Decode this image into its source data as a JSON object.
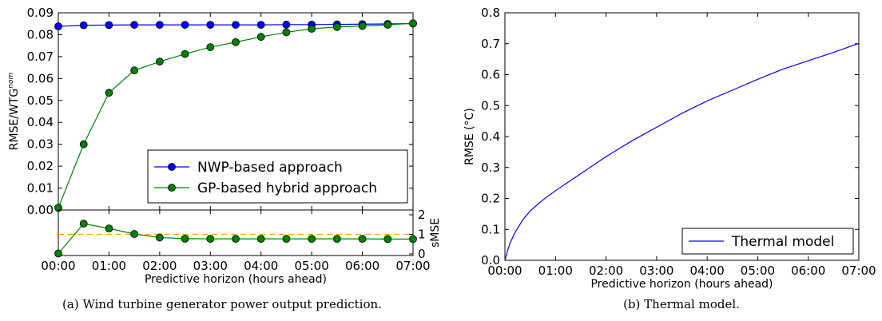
{
  "chart_data": [
    {
      "type": "line",
      "panel": "a-top",
      "x": [
        "00:00",
        "00:30",
        "01:00",
        "01:30",
        "02:00",
        "02:30",
        "03:00",
        "03:30",
        "04:00",
        "04:30",
        "05:00",
        "05:30",
        "06:00",
        "06:30",
        "07:00"
      ],
      "xlabel": "Predictive horizon (hours ahead)",
      "ylabel": "RMSE/WTG",
      "ylabel_sup": "nom",
      "ylim": [
        0,
        0.09
      ],
      "yticks": [
        "0.00",
        "0.01",
        "0.02",
        "0.03",
        "0.04",
        "0.05",
        "0.06",
        "0.07",
        "0.08",
        "0.09"
      ],
      "xticks": [
        "00:00",
        "01:00",
        "02:00",
        "03:00",
        "04:00",
        "05:00",
        "06:00",
        "07:00"
      ],
      "legend": "bottom-right",
      "series": [
        {
          "name": "NWP-based approach",
          "color": "#0000ff",
          "values": [
            0.0838,
            0.0843,
            0.0844,
            0.0845,
            0.0845,
            0.0845,
            0.0845,
            0.0845,
            0.0845,
            0.0846,
            0.0846,
            0.0847,
            0.0848,
            0.0849,
            0.0851
          ]
        },
        {
          "name": "GP-based hybrid approach",
          "color": "#008000",
          "values": [
            0.001,
            0.03,
            0.0535,
            0.0637,
            0.0677,
            0.0712,
            0.0743,
            0.0766,
            0.079,
            0.0811,
            0.0827,
            0.0835,
            0.084,
            0.0845,
            0.0852
          ]
        }
      ]
    },
    {
      "type": "line",
      "panel": "a-bottom",
      "ylabel": "sMSE",
      "ylim": [
        0,
        2
      ],
      "yticks": [
        "0",
        "1",
        "2"
      ],
      "reference_line": {
        "value": 1.0,
        "color": "#ffa500",
        "style": "dashed"
      },
      "series": [
        {
          "name": "",
          "color": "#008000",
          "values": [
            0.02,
            1.55,
            1.3,
            1.02,
            0.84,
            0.78,
            0.77,
            0.77,
            0.77,
            0.77,
            0.77,
            0.77,
            0.77,
            0.76,
            0.76
          ]
        }
      ]
    },
    {
      "type": "line",
      "panel": "b",
      "xlabel": "Predictive horizon (hours ahead)",
      "ylabel": "RMSE (°C)",
      "ylim": [
        0,
        0.8
      ],
      "yticks": [
        "0.0",
        "0.1",
        "0.2",
        "0.3",
        "0.4",
        "0.5",
        "0.6",
        "0.7",
        "0.8"
      ],
      "xticks": [
        "00:00",
        "01:00",
        "02:00",
        "03:00",
        "04:00",
        "05:00",
        "06:00",
        "07:00"
      ],
      "legend": "bottom-right",
      "series": [
        {
          "name": "Thermal model",
          "color": "#0000ff",
          "hours": [
            0,
            0.05,
            0.1,
            0.2,
            0.35,
            0.5,
            0.75,
            1,
            1.5,
            2,
            2.5,
            3,
            3.5,
            4,
            4.5,
            5,
            5.5,
            6,
            6.5,
            7
          ],
          "values": [
            0,
            0.03,
            0.055,
            0.09,
            0.13,
            0.16,
            0.195,
            0.225,
            0.28,
            0.335,
            0.385,
            0.43,
            0.475,
            0.515,
            0.55,
            0.585,
            0.618,
            0.645,
            0.672,
            0.701
          ]
        }
      ]
    }
  ],
  "captions": {
    "a": "(a)  Wind turbine generator power output prediction.",
    "b": "(b)  Thermal model."
  }
}
